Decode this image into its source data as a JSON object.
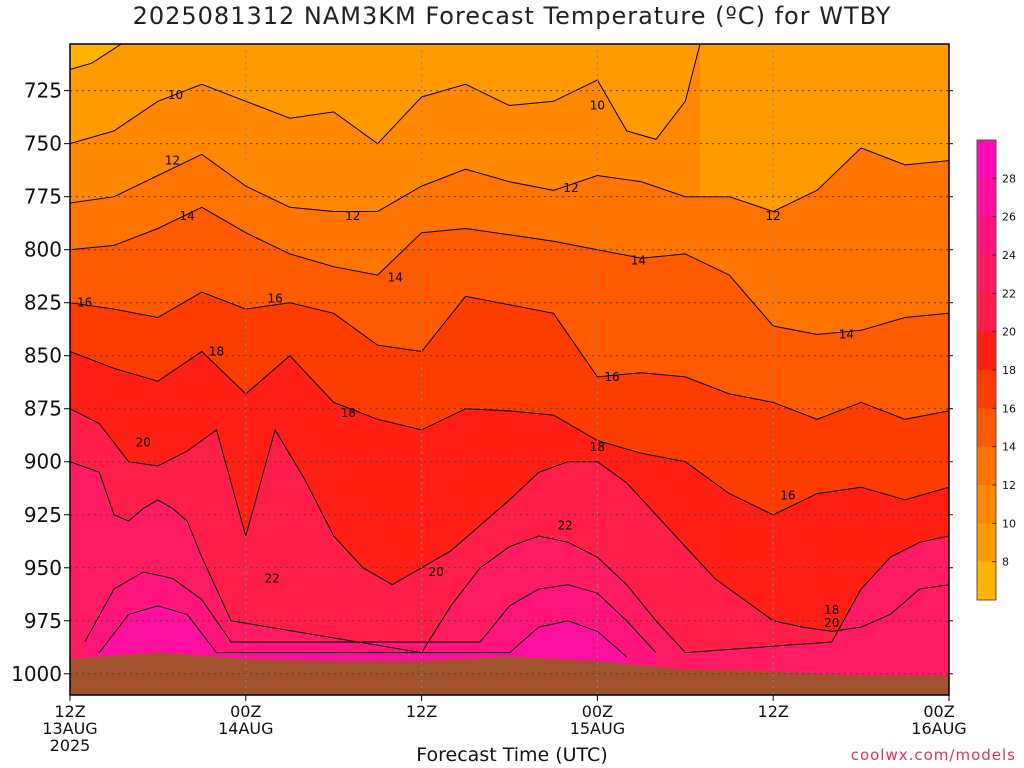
{
  "title": "2025081312 NAM3KM Forecast Temperature (ºC) for WTBY",
  "xlabel": "Forecast Time (UTC)",
  "credit": "coolwx.com/models",
  "chart_data": {
    "type": "heatmap",
    "y_axis": {
      "ticks": [
        725,
        750,
        775,
        800,
        825,
        850,
        875,
        900,
        925,
        950,
        975,
        1000
      ],
      "inverted": true,
      "range": [
        703,
        1010
      ]
    },
    "x_axis": {
      "range_hours": [
        0,
        60
      ],
      "ticks": [
        {
          "hour": 0,
          "lines": [
            "12Z",
            "13AUG",
            "2025"
          ]
        },
        {
          "hour": 12,
          "lines": [
            "00Z",
            "14AUG"
          ]
        },
        {
          "hour": 24,
          "lines": [
            "12Z"
          ]
        },
        {
          "hour": 36,
          "lines": [
            "00Z",
            "15AUG"
          ]
        },
        {
          "hour": 48,
          "lines": [
            "12Z"
          ]
        },
        {
          "hour": 60,
          "lines": [
            "00Z",
            "16AUG"
          ]
        }
      ]
    },
    "grid": true,
    "colorbar": {
      "position": "right",
      "ticks": [
        8,
        10,
        12,
        14,
        16,
        18,
        20,
        22,
        24,
        26,
        28
      ],
      "colors": [
        "#ffb300",
        "#ff9a00",
        "#ff8800",
        "#ff7300",
        "#ff5a00",
        "#ff3c00",
        "#ff1e14",
        "#ff1e4a",
        "#ff1a64",
        "#ff147e",
        "#ff0f9e",
        "#ff0ab4"
      ]
    },
    "ground_color": "#a0522d",
    "contours": [
      {
        "label": "10",
        "hours": [
          0,
          3,
          6,
          9,
          12,
          15,
          18,
          21,
          24,
          27,
          30,
          33,
          36,
          38,
          40,
          42,
          43
        ],
        "pressure": [
          750,
          744,
          730,
          722,
          730,
          738,
          735,
          750,
          728,
          722,
          732,
          730,
          720,
          744,
          748,
          730,
          703
        ]
      },
      {
        "label": "12",
        "hours": [
          0,
          3,
          6,
          9,
          12,
          15,
          18,
          21,
          24,
          27,
          30,
          33,
          36,
          39,
          42,
          45,
          48,
          51,
          54,
          57,
          60
        ],
        "pressure": [
          778,
          775,
          765,
          755,
          770,
          780,
          782,
          782,
          770,
          762,
          768,
          772,
          765,
          768,
          775,
          775,
          782,
          772,
          752,
          760,
          758
        ]
      },
      {
        "label": "14",
        "hours": [
          0,
          3,
          6,
          9,
          12,
          15,
          18,
          21,
          24,
          27,
          30,
          33,
          36,
          39,
          42,
          45,
          48,
          51,
          54,
          57,
          60
        ],
        "pressure": [
          800,
          798,
          790,
          780,
          792,
          802,
          808,
          812,
          792,
          790,
          793,
          796,
          800,
          804,
          802,
          812,
          836,
          840,
          838,
          832,
          830
        ]
      },
      {
        "label": "16",
        "hours": [
          0,
          3,
          6,
          9,
          12,
          15,
          18,
          21,
          24,
          27,
          30,
          33,
          36,
          39,
          42,
          45,
          48,
          51,
          54,
          57,
          60
        ],
        "pressure": [
          825,
          828,
          832,
          820,
          828,
          825,
          830,
          845,
          848,
          822,
          826,
          830,
          860,
          858,
          860,
          868,
          872,
          880,
          872,
          880,
          876
        ]
      },
      {
        "label": "18",
        "hours": [
          0,
          3,
          6,
          9,
          12,
          15,
          18,
          21,
          24,
          27,
          30,
          33,
          36,
          39,
          42,
          45,
          48,
          51,
          54,
          57,
          60
        ],
        "pressure": [
          848,
          856,
          862,
          848,
          868,
          850,
          872,
          880,
          885,
          875,
          876,
          878,
          890,
          896,
          900,
          915,
          925,
          915,
          912,
          918,
          912
        ]
      },
      {
        "label": "20",
        "hours": [
          0,
          2,
          4,
          6,
          8,
          10,
          12,
          14,
          16,
          18,
          20,
          22,
          24,
          26,
          28,
          30,
          32,
          34,
          36,
          38,
          40,
          42,
          44,
          46,
          48,
          50,
          52,
          54,
          56,
          58,
          60
        ],
        "pressure": [
          875,
          882,
          900,
          902,
          895,
          885,
          935,
          885,
          908,
          935,
          950,
          958,
          950,
          942,
          930,
          918,
          905,
          900,
          900,
          910,
          925,
          940,
          955,
          965,
          975,
          978,
          980,
          978,
          972,
          960,
          958
        ]
      },
      {
        "label": "22",
        "hours": [
          0,
          2,
          3,
          4,
          5,
          6,
          7,
          8,
          9,
          10,
          11,
          24,
          26,
          28,
          30,
          32,
          34,
          36,
          38,
          40,
          42,
          52,
          54,
          56,
          58,
          60
        ],
        "pressure": [
          900,
          905,
          925,
          928,
          922,
          918,
          922,
          928,
          945,
          960,
          975,
          990,
          968,
          950,
          940,
          935,
          938,
          945,
          958,
          975,
          990,
          985,
          960,
          945,
          938,
          935
        ]
      },
      {
        "label": "24",
        "hours": [
          1,
          3,
          5,
          7,
          9,
          11,
          28,
          30,
          32,
          34,
          36,
          38,
          40
        ],
        "pressure": [
          985,
          960,
          952,
          955,
          965,
          985,
          985,
          968,
          960,
          958,
          962,
          975,
          990
        ]
      },
      {
        "label": "26",
        "hours": [
          2,
          4,
          6,
          8,
          10,
          30,
          32,
          34,
          36,
          38
        ],
        "pressure": [
          990,
          972,
          968,
          972,
          990,
          990,
          978,
          975,
          980,
          992
        ]
      }
    ],
    "labels": [
      {
        "text": "10",
        "hour": 7.2,
        "pressure": 727
      },
      {
        "text": "10",
        "hour": 36.0,
        "pressure": 732
      },
      {
        "text": "12",
        "hour": 7.0,
        "pressure": 758
      },
      {
        "text": "12",
        "hour": 19.3,
        "pressure": 784
      },
      {
        "text": "12",
        "hour": 34.2,
        "pressure": 771
      },
      {
        "text": "12",
        "hour": 48.0,
        "pressure": 784
      },
      {
        "text": "14",
        "hour": 8.0,
        "pressure": 784
      },
      {
        "text": "14",
        "hour": 22.2,
        "pressure": 813
      },
      {
        "text": "14",
        "hour": 38.8,
        "pressure": 805
      },
      {
        "text": "14",
        "hour": 53.0,
        "pressure": 840
      },
      {
        "text": "16",
        "hour": 1.0,
        "pressure": 825
      },
      {
        "text": "16",
        "hour": 14.0,
        "pressure": 823
      },
      {
        "text": "16",
        "hour": 37.0,
        "pressure": 860
      },
      {
        "text": "16",
        "hour": 49.0,
        "pressure": 916
      },
      {
        "text": "18",
        "hour": 10.0,
        "pressure": 848
      },
      {
        "text": "18",
        "hour": 19.0,
        "pressure": 877
      },
      {
        "text": "18",
        "hour": 36.0,
        "pressure": 893
      },
      {
        "text": "18",
        "hour": 52.0,
        "pressure": 970
      },
      {
        "text": "20",
        "hour": 5.0,
        "pressure": 891
      },
      {
        "text": "20",
        "hour": 25.0,
        "pressure": 952
      },
      {
        "text": "20",
        "hour": 52.0,
        "pressure": 976
      },
      {
        "text": "22",
        "hour": 13.8,
        "pressure": 955
      },
      {
        "text": "22",
        "hour": 33.8,
        "pressure": 930
      }
    ]
  }
}
